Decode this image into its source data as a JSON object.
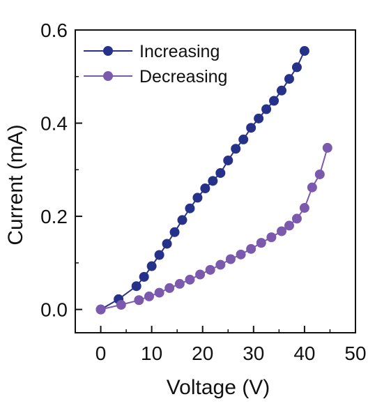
{
  "chart_data": {
    "type": "scatter",
    "xlabel": "Voltage (V)",
    "ylabel": "Current (mA)",
    "xlim": [
      -5,
      50
    ],
    "ylim": [
      -0.05,
      0.6
    ],
    "xticks": [
      0,
      10,
      20,
      30,
      40,
      50
    ],
    "yticks": [
      0.0,
      0.2,
      0.4,
      0.6
    ],
    "ytick_labels": [
      "0.0",
      "0.2",
      "0.4",
      "0.6"
    ],
    "legend": "top-left",
    "grid": false,
    "series": [
      {
        "name": "Increasing",
        "color": "#26328a",
        "marker": "circle",
        "line": true,
        "x": [
          0,
          3.5,
          7,
          8.5,
          10,
          11.5,
          13,
          14.5,
          16,
          17.5,
          19,
          20.5,
          22,
          23.5,
          25,
          26.5,
          28,
          29.5,
          31,
          32.5,
          34,
          35.5,
          37,
          38.5,
          40
        ],
        "y": [
          0.0,
          0.022,
          0.05,
          0.07,
          0.093,
          0.117,
          0.141,
          0.166,
          0.192,
          0.217,
          0.24,
          0.26,
          0.276,
          0.293,
          0.32,
          0.345,
          0.365,
          0.39,
          0.41,
          0.43,
          0.448,
          0.47,
          0.495,
          0.52,
          0.555
        ]
      },
      {
        "name": "Decreasing",
        "color": "#7b59ad",
        "marker": "circle",
        "line": true,
        "x": [
          0,
          4,
          7.5,
          9.5,
          11.5,
          13.5,
          15.5,
          17.5,
          19.5,
          21.5,
          23.5,
          25.5,
          27.5,
          29.5,
          31.5,
          33.5,
          35.5,
          37,
          38.5,
          40,
          41.5,
          43,
          44.5
        ],
        "y": [
          0.0,
          0.01,
          0.02,
          0.028,
          0.036,
          0.046,
          0.055,
          0.064,
          0.075,
          0.085,
          0.096,
          0.108,
          0.118,
          0.13,
          0.143,
          0.155,
          0.168,
          0.18,
          0.195,
          0.218,
          0.262,
          0.29,
          0.347
        ]
      }
    ]
  }
}
